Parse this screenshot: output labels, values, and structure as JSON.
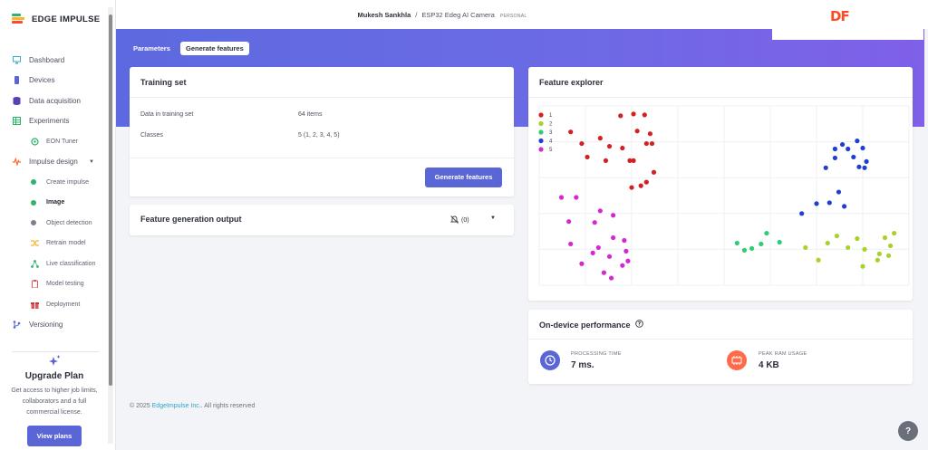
{
  "brand": {
    "name": "EDGE IMPULSE"
  },
  "sidebar": {
    "items": [
      {
        "label": "Dashboard",
        "icon": "monitor-icon",
        "color": "#3aa7c9"
      },
      {
        "label": "Devices",
        "icon": "devices-icon",
        "color": "#5b66d6"
      },
      {
        "label": "Data acquisition",
        "icon": "database-icon",
        "color": "#5b3fb8"
      },
      {
        "label": "Experiments",
        "icon": "table-icon",
        "color": "#2fb36b"
      },
      {
        "label": "EON Tuner",
        "icon": "tuner-icon",
        "color": "#2fb36b"
      },
      {
        "label": "Impulse design",
        "icon": "impulse-icon",
        "color": "#ff6a2b"
      },
      {
        "label": "Create impulse",
        "color": "#2fb36b"
      },
      {
        "label": "Image",
        "color": "#2fb36b"
      },
      {
        "label": "Object detection",
        "color": "#7b8190"
      },
      {
        "label": "Retrain model",
        "color": "#f5b52e"
      },
      {
        "label": "Live classification",
        "color": "#2fb36b"
      },
      {
        "label": "Model testing",
        "color": "#e05555"
      },
      {
        "label": "Deployment",
        "color": "#e05555"
      },
      {
        "label": "Versioning",
        "icon": "branch-icon",
        "color": "#5b66d6"
      }
    ],
    "upgrade": {
      "title": "Upgrade Plan",
      "text": "Get access to higher job limits, collaborators and a full commercial license.",
      "button": "View plans"
    }
  },
  "topbar": {
    "user": "Mukesh Sankhla",
    "separator": "/",
    "project": "ESP32 Edeg AI Camera",
    "badge": "PERSONAL",
    "logo_text": "DF"
  },
  "tabs": {
    "parameters": "Parameters",
    "generate": "Generate features"
  },
  "training_set": {
    "title": "Training set",
    "rows": [
      {
        "label": "Data in training set",
        "value": "64 items"
      },
      {
        "label": "Classes",
        "value": "5 (1, 2, 3, 4, 5)"
      }
    ],
    "button": "Generate features"
  },
  "feature_output": {
    "title": "Feature generation output",
    "notif_count": "(0)"
  },
  "feature_explorer": {
    "title": "Feature explorer"
  },
  "chart_data": {
    "type": "scatter",
    "title": "",
    "xlabel": "",
    "ylabel": "",
    "grid": true,
    "legend": "top-left",
    "series": [
      {
        "name": "1",
        "color": "#d42020",
        "points": [
          [
            0.085,
            0.145
          ],
          [
            0.115,
            0.21
          ],
          [
            0.13,
            0.285
          ],
          [
            0.165,
            0.18
          ],
          [
            0.18,
            0.305
          ],
          [
            0.19,
            0.225
          ],
          [
            0.22,
            0.055
          ],
          [
            0.225,
            0.235
          ],
          [
            0.255,
            0.045
          ],
          [
            0.265,
            0.14
          ],
          [
            0.245,
            0.305
          ],
          [
            0.255,
            0.305
          ],
          [
            0.285,
            0.05
          ],
          [
            0.3,
            0.155
          ],
          [
            0.305,
            0.21
          ],
          [
            0.29,
            0.21
          ],
          [
            0.275,
            0.445
          ],
          [
            0.29,
            0.425
          ],
          [
            0.31,
            0.37
          ],
          [
            0.25,
            0.455
          ]
        ]
      },
      {
        "name": "2",
        "color": "#a8d22a",
        "points": [
          [
            0.72,
            0.79
          ],
          [
            0.755,
            0.86
          ],
          [
            0.78,
            0.765
          ],
          [
            0.805,
            0.725
          ],
          [
            0.835,
            0.79
          ],
          [
            0.86,
            0.74
          ],
          [
            0.875,
            0.895
          ],
          [
            0.88,
            0.8
          ],
          [
            0.915,
            0.86
          ],
          [
            0.92,
            0.825
          ],
          [
            0.935,
            0.735
          ],
          [
            0.95,
            0.78
          ],
          [
            0.96,
            0.71
          ],
          [
            0.945,
            0.835
          ]
        ]
      },
      {
        "name": "3",
        "color": "#2fcc74",
        "points": [
          [
            0.535,
            0.765
          ],
          [
            0.555,
            0.805
          ],
          [
            0.575,
            0.795
          ],
          [
            0.6,
            0.77
          ],
          [
            0.615,
            0.71
          ],
          [
            0.65,
            0.76
          ]
        ]
      },
      {
        "name": "4",
        "color": "#1e3fd0",
        "points": [
          [
            0.71,
            0.6
          ],
          [
            0.75,
            0.545
          ],
          [
            0.785,
            0.54
          ],
          [
            0.81,
            0.48
          ],
          [
            0.775,
            0.345
          ],
          [
            0.8,
            0.29
          ],
          [
            0.82,
            0.215
          ],
          [
            0.835,
            0.24
          ],
          [
            0.86,
            0.195
          ],
          [
            0.875,
            0.235
          ],
          [
            0.885,
            0.31
          ],
          [
            0.8,
            0.24
          ],
          [
            0.85,
            0.285
          ],
          [
            0.865,
            0.34
          ],
          [
            0.88,
            0.345
          ],
          [
            0.825,
            0.56
          ]
        ]
      },
      {
        "name": "5",
        "color": "#d22ad0",
        "points": [
          [
            0.06,
            0.51
          ],
          [
            0.1,
            0.51
          ],
          [
            0.08,
            0.645
          ],
          [
            0.085,
            0.77
          ],
          [
            0.115,
            0.88
          ],
          [
            0.145,
            0.82
          ],
          [
            0.16,
            0.79
          ],
          [
            0.175,
            0.93
          ],
          [
            0.19,
            0.84
          ],
          [
            0.2,
            0.735
          ],
          [
            0.23,
            0.75
          ],
          [
            0.235,
            0.81
          ],
          [
            0.24,
            0.865
          ],
          [
            0.165,
            0.585
          ],
          [
            0.2,
            0.61
          ],
          [
            0.15,
            0.65
          ],
          [
            0.225,
            0.89
          ],
          [
            0.195,
            0.96
          ]
        ]
      }
    ]
  },
  "perf": {
    "title": "On-device performance",
    "processing_label": "PROCESSING TIME",
    "processing_value": "7 ms.",
    "ram_label": "PEAK RAM USAGE",
    "ram_value": "4 KB"
  },
  "footer": {
    "copyright": "© 2025",
    "company": "EdgeImpulse Inc.",
    "rights": "All rights reserved"
  }
}
